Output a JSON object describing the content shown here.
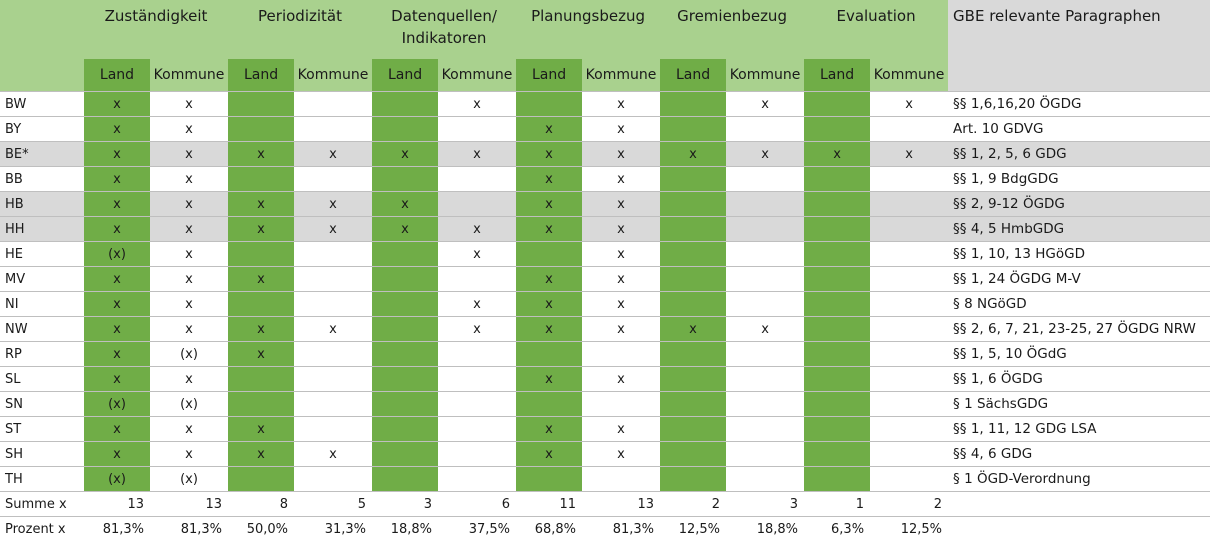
{
  "groups": [
    {
      "title": "Zuständigkeit"
    },
    {
      "title": "Periodizität"
    },
    {
      "title": "Datenquellen/ Indikatoren"
    },
    {
      "title": "Planungsbezug"
    },
    {
      "title": "Gremienbezug"
    },
    {
      "title": "Evaluation"
    }
  ],
  "gbe_header": "GBE relevante Paragraphen",
  "sub_land": "Land",
  "sub_kommune": "Kommune",
  "rows": [
    {
      "state": "BW",
      "cells": [
        "x",
        "x",
        "",
        "",
        "",
        "x",
        "",
        "x",
        "",
        "x",
        "",
        "x"
      ],
      "para": "§§ 1,6,16,20 ÖGDG",
      "shaded": false
    },
    {
      "state": "BY",
      "cells": [
        "x",
        "x",
        "",
        "",
        "",
        "",
        "x",
        "x",
        "",
        "",
        "",
        ""
      ],
      "para": "Art. 10 GDVG",
      "shaded": false
    },
    {
      "state": "BE*",
      "cells": [
        "x",
        "x",
        "x",
        "x",
        "x",
        "x",
        "x",
        "x",
        "x",
        "x",
        "x",
        "x"
      ],
      "para": "§§ 1, 2, 5, 6 GDG",
      "shaded": true
    },
    {
      "state": "BB",
      "cells": [
        "x",
        "x",
        "",
        "",
        "",
        "",
        "x",
        "x",
        "",
        "",
        "",
        ""
      ],
      "para": "§§ 1, 9 BdgGDG",
      "shaded": false
    },
    {
      "state": "HB",
      "cells": [
        "x",
        "x",
        "x",
        "x",
        "x",
        "",
        "x",
        "x",
        "",
        "",
        "",
        ""
      ],
      "para": "§§ 2, 9-12  ÖGDG",
      "shaded": true
    },
    {
      "state": "HH",
      "cells": [
        "x",
        "x",
        "x",
        "x",
        "x",
        "x",
        "x",
        "x",
        "",
        "",
        "",
        ""
      ],
      "para": "§§ 4, 5 HmbGDG",
      "shaded": true
    },
    {
      "state": "HE",
      "cells": [
        "(x)",
        "x",
        "",
        "",
        "",
        "x",
        "",
        "x",
        "",
        "",
        "",
        ""
      ],
      "para": "§§ 1, 10, 13 HGöGD",
      "shaded": false
    },
    {
      "state": "MV",
      "cells": [
        "x",
        "x",
        "x",
        "",
        "",
        "",
        "x",
        "x",
        "",
        "",
        "",
        ""
      ],
      "para": "§§ 1, 24 ÖGDG M-V",
      "shaded": false
    },
    {
      "state": "NI",
      "cells": [
        "x",
        "x",
        "",
        "",
        "",
        "x",
        "x",
        "x",
        "",
        "",
        "",
        ""
      ],
      "para": "§ 8 NGöGD",
      "shaded": false
    },
    {
      "state": "NW",
      "cells": [
        "x",
        "x",
        "x",
        "x",
        "",
        "x",
        "x",
        "x",
        "x",
        "x",
        "",
        ""
      ],
      "para": "§§ 2, 6, 7, 21, 23-25, 27 ÖGDG NRW",
      "shaded": false
    },
    {
      "state": "RP",
      "cells": [
        "x",
        "(x)",
        "x",
        "",
        "",
        "",
        "",
        "",
        "",
        "",
        "",
        ""
      ],
      "para": "§§ 1, 5, 10 ÖGdG",
      "shaded": false
    },
    {
      "state": "SL",
      "cells": [
        "x",
        "x",
        "",
        "",
        "",
        "",
        "x",
        "x",
        "",
        "",
        "",
        ""
      ],
      "para": "§§ 1, 6 ÖGDG",
      "shaded": false
    },
    {
      "state": "SN",
      "cells": [
        "(x)",
        "(x)",
        "",
        "",
        "",
        "",
        "",
        "",
        "",
        "",
        "",
        ""
      ],
      "para": "§ 1 SächsGDG",
      "shaded": false
    },
    {
      "state": "ST",
      "cells": [
        "x",
        "x",
        "x",
        "",
        "",
        "",
        "x",
        "x",
        "",
        "",
        "",
        ""
      ],
      "para": "§§ 1, 11, 12 GDG LSA",
      "shaded": false
    },
    {
      "state": "SH",
      "cells": [
        "x",
        "x",
        "x",
        "x",
        "",
        "",
        "x",
        "x",
        "",
        "",
        "",
        ""
      ],
      "para": "§§ 4, 6 GDG",
      "shaded": false
    },
    {
      "state": "TH",
      "cells": [
        "(x)",
        "(x)",
        "",
        "",
        "",
        "",
        "",
        "",
        "",
        "",
        "",
        ""
      ],
      "para": "§ 1 ÖGD-Verordnung",
      "shaded": false
    }
  ],
  "summe_label": "Summe x",
  "summe": [
    "13",
    "13",
    "8",
    "5",
    "3",
    "6",
    "11",
    "13",
    "2",
    "3",
    "1",
    "2"
  ],
  "prozent_label": "Prozent x",
  "prozent": [
    "81,3%",
    "81,3%",
    "50,0%",
    "31,3%",
    "18,8%",
    "37,5%",
    "68,8%",
    "81,3%",
    "12,5%",
    "18,8%",
    "6,3%",
    "12,5%"
  ],
  "colors": {
    "land_green": "#70ad47",
    "header_light_green": "#a9d18e",
    "shade_gray": "#d9d9d9"
  }
}
